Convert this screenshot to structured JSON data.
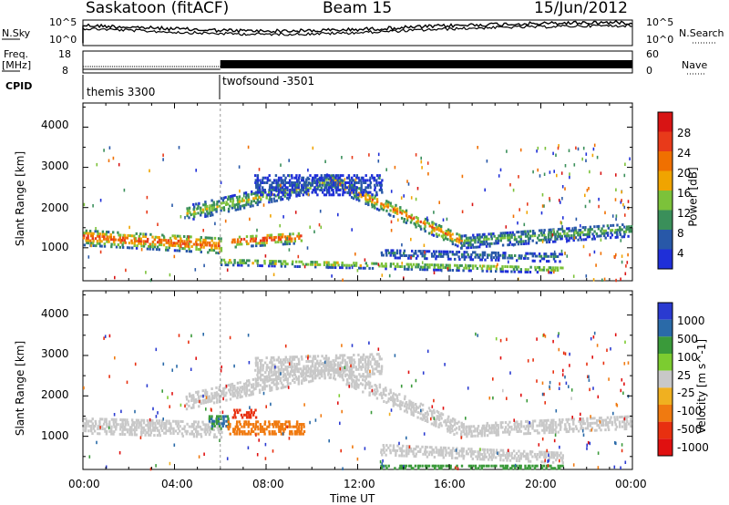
{
  "header": {
    "radar": "Saskatoon (fitACF)",
    "beam": "Beam 15",
    "date": "15/Jun/2012"
  },
  "top_panel": {
    "nsky_label": "N.Sky",
    "nsearch_label": "N.Search",
    "nsky_ticks": [
      "10^5",
      "10^0"
    ],
    "nsearch_ticks": [
      "10^5",
      "10^0"
    ],
    "freq_label": "Freq.",
    "freq_unit": "[MHz]",
    "freq_ticks": [
      "18",
      "8"
    ],
    "nave_label": "Nave",
    "nave_ticks": [
      "60",
      "0"
    ],
    "cpid_label": "CPID",
    "cpid_programs": [
      {
        "name": "themis 3300",
        "start_hour": 0,
        "end_hour": 6
      },
      {
        "name": "twofsound -3501",
        "start_hour": 6,
        "end_hour": 24
      }
    ]
  },
  "chart_data": [
    {
      "type": "heatmap",
      "name": "Power",
      "ylabel": "Slant Range [km]",
      "xlabel": "",
      "ylim": [
        180,
        4600
      ],
      "yticks": [
        "1000",
        "2000",
        "3000",
        "4000"
      ],
      "xlim_hours": [
        0,
        24
      ],
      "colorbar_label": "Power [dB]",
      "colorbar_ticks": [
        "4",
        "8",
        "12",
        "16",
        "20",
        "24",
        "28"
      ],
      "colorbar_colors": [
        "#1f2fd8",
        "#2858a8",
        "#3a8f5a",
        "#7cc23a",
        "#f0a400",
        "#f07000",
        "#e83a1a",
        "#d81414"
      ],
      "bands": [
        {
          "t0": 0,
          "t1": 6,
          "r0": 1300,
          "r1": 1100,
          "w": 400,
          "v": 26
        },
        {
          "t0": 4.5,
          "t1": 10.8,
          "r0": 1900,
          "r1": 2700,
          "w": 380,
          "v": 16
        },
        {
          "t0": 6.5,
          "t1": 9.5,
          "r0": 1200,
          "r1": 1300,
          "w": 300,
          "v": 27
        },
        {
          "t0": 10.8,
          "t1": 16.5,
          "r0": 2700,
          "r1": 1200,
          "w": 350,
          "v": 22
        },
        {
          "t0": 16.5,
          "t1": 24,
          "r0": 1200,
          "r1": 1500,
          "w": 350,
          "v": 12
        },
        {
          "t0": 7.5,
          "t1": 13,
          "r0": 2600,
          "r1": 2600,
          "w": 500,
          "v": 6
        },
        {
          "t0": 6,
          "t1": 21,
          "r0": 700,
          "r1": 500,
          "w": 180,
          "v": 18
        },
        {
          "t0": 13,
          "t1": 21,
          "r0": 900,
          "r1": 800,
          "w": 220,
          "v": 8
        }
      ]
    },
    {
      "type": "heatmap",
      "name": "Velocity",
      "ylabel": "Slant Range [km]",
      "xlabel": "Time UT",
      "ylim": [
        180,
        4600
      ],
      "yticks": [
        "1000",
        "2000",
        "3000",
        "4000"
      ],
      "xticks": [
        "00:00",
        "04:00",
        "08:00",
        "12:00",
        "16:00",
        "20:00",
        "00:00"
      ],
      "xlim_hours": [
        0,
        24
      ],
      "colorbar_label": "Velocity [m s^-1]",
      "colorbar_ticks": [
        "1000",
        "500",
        "100",
        "25",
        "-25",
        "-100",
        "-500",
        "-1000"
      ],
      "colorbar_colors": [
        "#2a3ad0",
        "#2a6aa8",
        "#3a9a3a",
        "#7ccc30",
        "#c8c8c8",
        "#f0b020",
        "#f07a10",
        "#e83010",
        "#e01010"
      ],
      "bands": [
        {
          "t0": 0,
          "t1": 6,
          "r0": 1300,
          "r1": 1200,
          "w": 380,
          "v": 0
        },
        {
          "t0": 5.5,
          "t1": 6.3,
          "r0": 1400,
          "r1": 1400,
          "w": 350,
          "v": 300
        },
        {
          "t0": 6.3,
          "t1": 9.6,
          "r0": 1250,
          "r1": 1250,
          "w": 320,
          "v": -200
        },
        {
          "t0": 6.5,
          "t1": 7.5,
          "r0": 1600,
          "r1": 1600,
          "w": 200,
          "v": -700
        },
        {
          "t0": 4.5,
          "t1": 10.8,
          "r0": 1900,
          "r1": 2700,
          "w": 380,
          "v": 0
        },
        {
          "t0": 10.8,
          "t1": 16.5,
          "r0": 2700,
          "r1": 1200,
          "w": 400,
          "v": 0
        },
        {
          "t0": 16.5,
          "t1": 24,
          "r0": 1200,
          "r1": 1400,
          "w": 350,
          "v": 0
        },
        {
          "t0": 7.5,
          "t1": 13,
          "r0": 2700,
          "r1": 2800,
          "w": 550,
          "v": 0
        },
        {
          "t0": 13,
          "t1": 21,
          "r0": 700,
          "r1": 500,
          "w": 250,
          "v": 0
        },
        {
          "t0": 13,
          "t1": 21,
          "r0": 300,
          "r1": 300,
          "w": 120,
          "v": 120
        }
      ]
    }
  ]
}
